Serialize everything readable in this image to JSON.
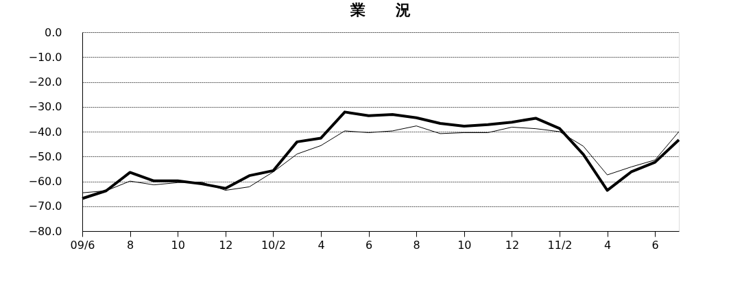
{
  "chart_data": {
    "type": "line",
    "title": "業　　況",
    "categories": [
      "09/6",
      null,
      "8",
      null,
      "10",
      null,
      "12",
      null,
      "10/2",
      null,
      "4",
      null,
      "6",
      null,
      "8",
      null,
      "10",
      null,
      "12",
      null,
      "11/2",
      null,
      "4",
      null,
      "6",
      null
    ],
    "series": [
      {
        "color": "#000000",
        "values": [
          -66.9,
          -63.8,
          -56.4,
          -59.8,
          -59.8,
          -61.0,
          -62.8,
          -57.7,
          -55.7,
          -44.1,
          -42.6,
          -32.1,
          -33.6,
          -33.1,
          -34.4,
          -36.7,
          -37.8,
          -37.2,
          -36.2,
          -34.6,
          -38.7,
          -49.2,
          -63.6,
          -56.2,
          -52.3,
          -43.3
        ]
      },
      {
        "color": "#000000",
        "values": [
          -64.6,
          -63.8,
          -59.9,
          -61.4,
          -60.5,
          -60.3,
          -63.6,
          -62.2,
          -56.2,
          -49.0,
          -45.6,
          -39.7,
          -40.4,
          -39.7,
          -37.7,
          -40.8,
          -40.4,
          -40.4,
          -38.2,
          -38.8,
          -40.0,
          -45.9,
          -57.4,
          -54.2,
          -51.4,
          -40.0
        ]
      }
    ],
    "ylim": [
      -80,
      0
    ],
    "yticks": [
      {
        "value": 0,
        "label": "0.0"
      },
      {
        "value": -10,
        "label": "−10.0"
      },
      {
        "value": -20,
        "label": "−20.0"
      },
      {
        "value": -30,
        "label": "−30.0"
      },
      {
        "value": -40,
        "label": "−40.0"
      },
      {
        "value": -50,
        "label": "−50.0"
      },
      {
        "value": -60,
        "label": "−60.0"
      },
      {
        "value": -70,
        "label": "−70.0"
      },
      {
        "value": -80,
        "label": "−80.0"
      }
    ],
    "grid": "y",
    "marker": "none",
    "line_style": "solid"
  }
}
